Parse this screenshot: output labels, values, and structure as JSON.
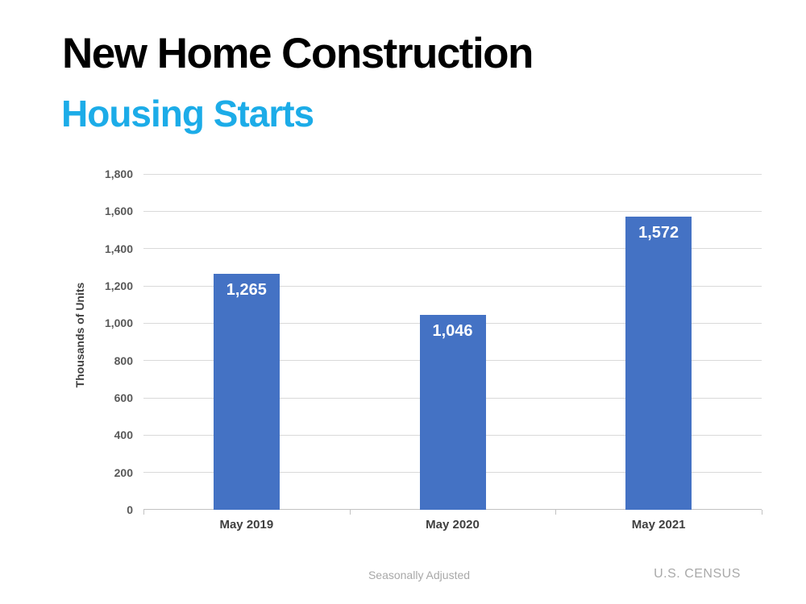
{
  "header": {
    "title": "New Home Construction",
    "subtitle": "Housing Starts"
  },
  "chart_data": {
    "type": "bar",
    "categories": [
      "May 2019",
      "May 2020",
      "May 2021"
    ],
    "values": [
      1265,
      1046,
      1572
    ],
    "data_labels": [
      "1,265",
      "1,046",
      "1,572"
    ],
    "title": "",
    "xlabel": "",
    "ylabel": "Thousands of Units",
    "ylim": [
      0,
      1800
    ],
    "ytick_interval": 200,
    "ytick_labels": [
      "0",
      "200",
      "400",
      "600",
      "800",
      "1,000",
      "1,200",
      "1,400",
      "1,600",
      "1,800"
    ],
    "grid": true,
    "legend": false
  },
  "footer": {
    "note": "Seasonally Adjusted",
    "source": "U.S. CENSUS"
  },
  "colors": {
    "bar": "#4472C4",
    "subtitle": "#1CACE8",
    "title": "#000000",
    "data_label": "#FFFFFF",
    "gridline": "#D9D9D9",
    "axis": "#C2C2C2",
    "ytick_text": "#595959",
    "xtick_text": "#3F3F3F",
    "footer_text": "#A8A8A8"
  }
}
